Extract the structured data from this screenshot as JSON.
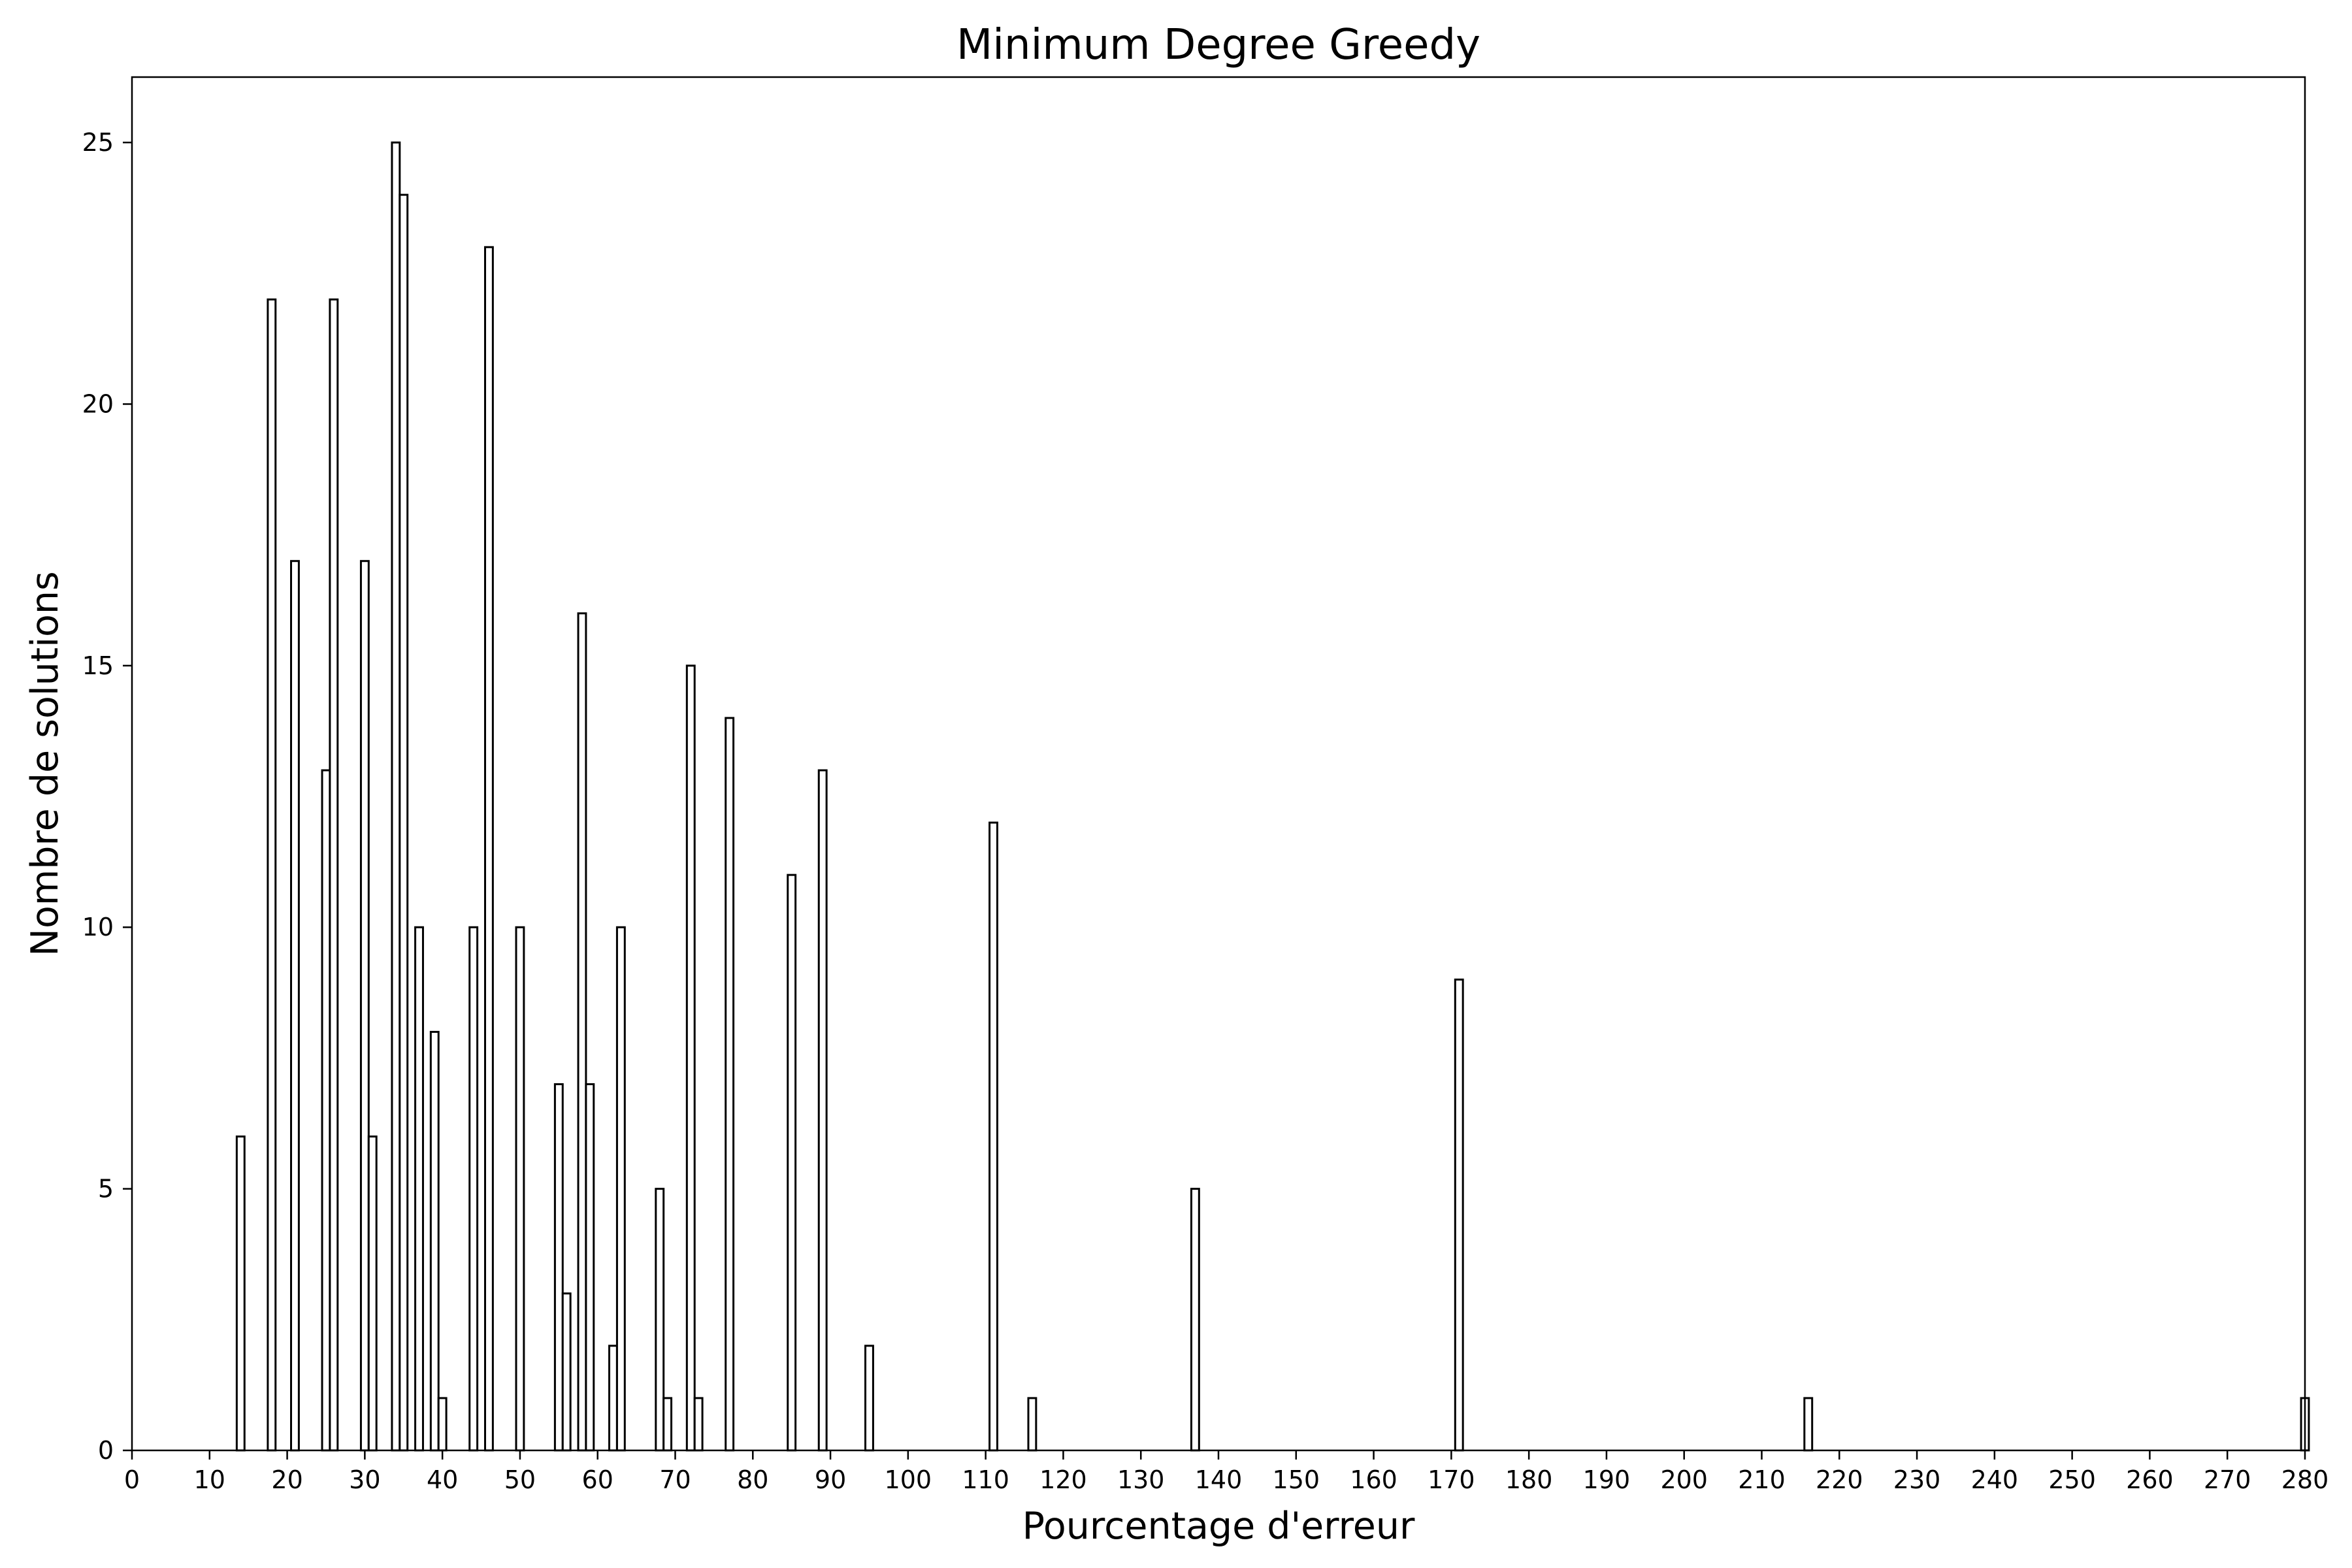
{
  "chart_data": {
    "type": "bar",
    "title": "Minimum Degree Greedy",
    "xlabel": "Pourcentage d'erreur",
    "ylabel": "Nombre de solutions",
    "xlim": [
      0,
      280
    ],
    "ylim": [
      0,
      26.25
    ],
    "x_ticks": [
      0,
      10,
      20,
      30,
      40,
      50,
      60,
      70,
      80,
      90,
      100,
      110,
      120,
      130,
      140,
      150,
      160,
      170,
      180,
      190,
      200,
      210,
      220,
      230,
      240,
      250,
      260,
      270,
      280
    ],
    "y_ticks": [
      0,
      5,
      10,
      15,
      20,
      25
    ],
    "bar_width": 1,
    "bars_empty_with_black_edge": true,
    "grid": false,
    "x": [
      14,
      18,
      21,
      25,
      26,
      30,
      31,
      34,
      35,
      37,
      39,
      40,
      44,
      46,
      50,
      55,
      56,
      58,
      59,
      62,
      63,
      68,
      69,
      72,
      73,
      77,
      85,
      89,
      95,
      111,
      116,
      137,
      171,
      216,
      280
    ],
    "values": [
      6,
      22,
      17,
      13,
      22,
      17,
      6,
      25,
      24,
      10,
      8,
      1,
      10,
      23,
      10,
      7,
      3,
      16,
      7,
      2,
      10,
      5,
      1,
      15,
      1,
      14,
      11,
      13,
      2,
      12,
      1,
      5,
      9,
      1,
      1
    ]
  }
}
